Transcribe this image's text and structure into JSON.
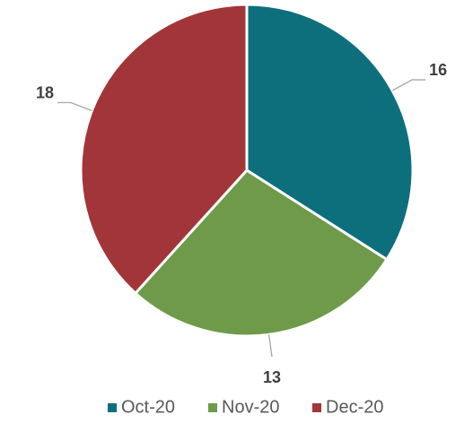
{
  "chart_data": {
    "type": "pie",
    "categories": [
      "Oct-20",
      "Nov-20",
      "Dec-20"
    ],
    "values": [
      16,
      13,
      18
    ],
    "colors": [
      "#0e6f7c",
      "#6f9a4a",
      "#a2353a"
    ],
    "legend": "bottom"
  }
}
